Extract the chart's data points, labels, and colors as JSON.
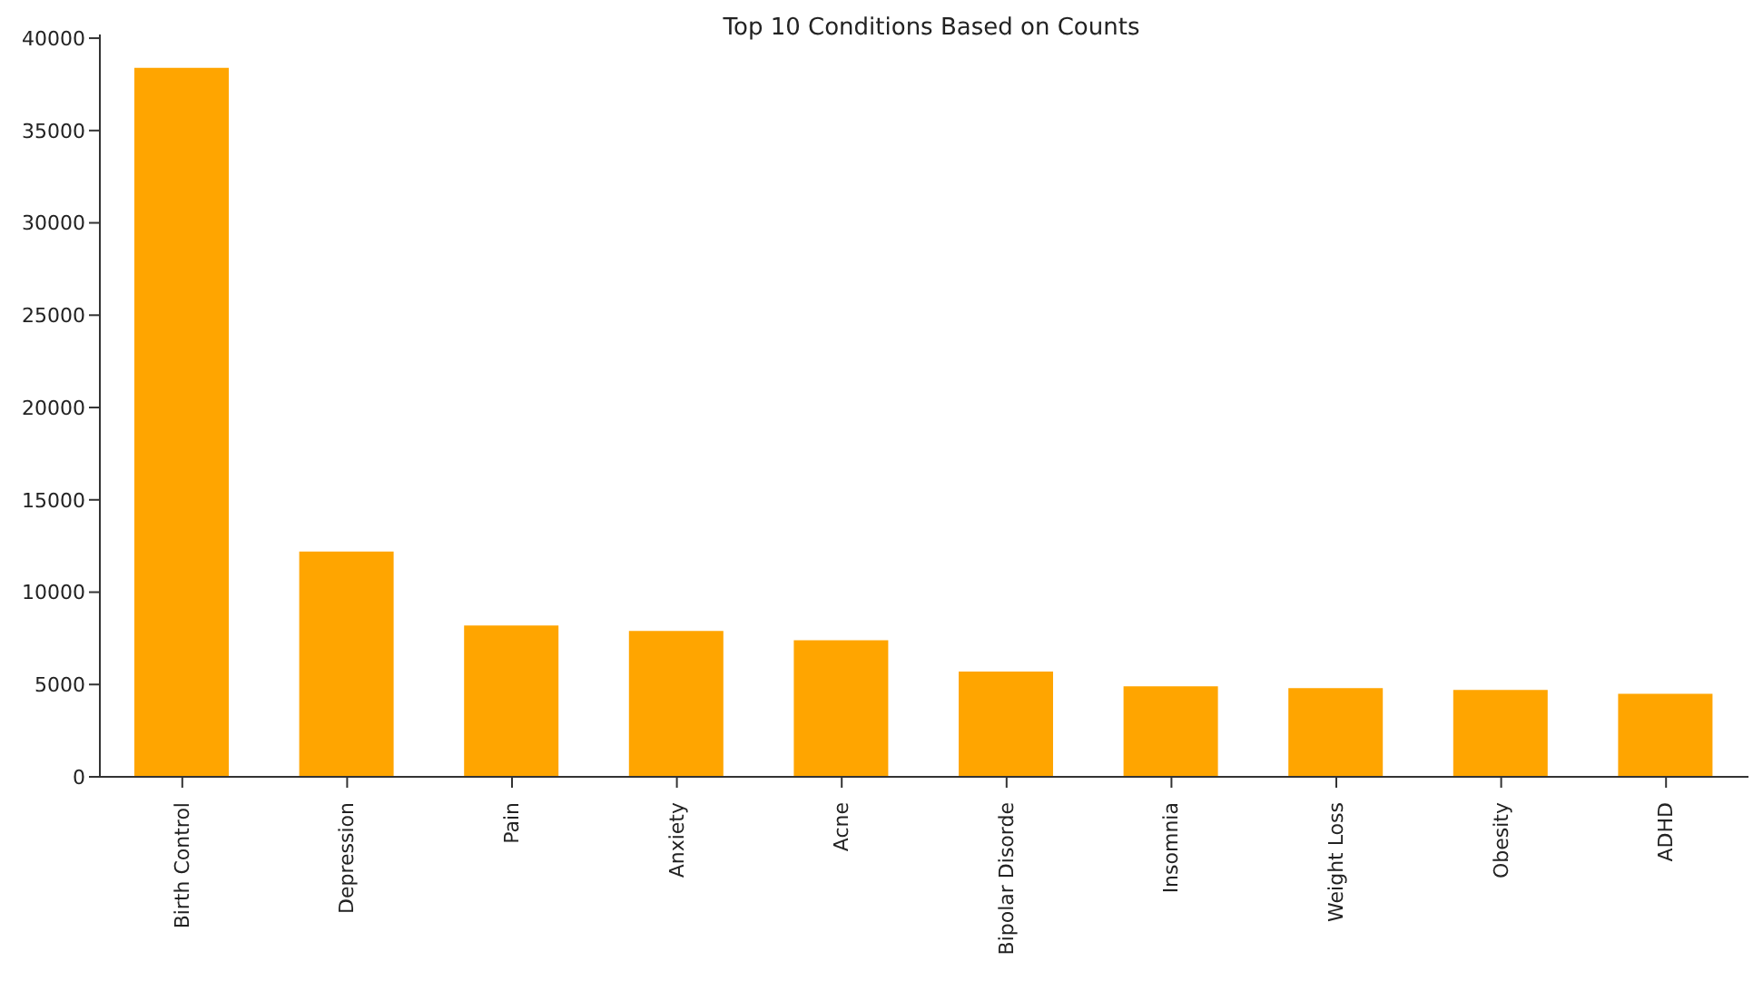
{
  "chart_data": {
    "type": "bar",
    "title": "Top 10 Conditions Based on Counts",
    "categories": [
      "Birth Control",
      "Depression",
      "Pain",
      "Anxiety",
      "Acne",
      "Bipolar Disorde",
      "Insomnia",
      "Weight Loss",
      "Obesity",
      "ADHD"
    ],
    "values": [
      38400,
      12200,
      8200,
      7900,
      7400,
      5700,
      4900,
      4800,
      4700,
      4500
    ],
    "color": "#ffa500",
    "ylim": [
      0,
      40200
    ],
    "yticks": [
      0,
      5000,
      10000,
      15000,
      20000,
      25000,
      30000,
      35000,
      40000
    ],
    "grid": false,
    "legend": false
  }
}
